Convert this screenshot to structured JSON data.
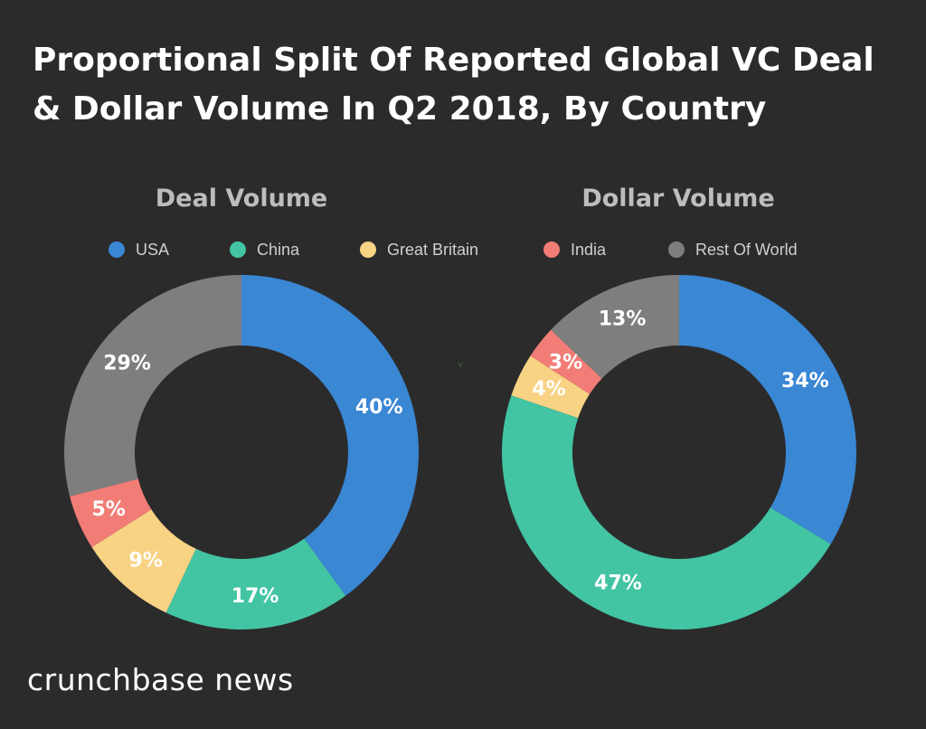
{
  "title_lines": [
    "Proportional Split Of Reported Global VC Deal",
    "& Dollar Volume In Q2 2018, By Country"
  ],
  "legend": [
    {
      "label": "USA",
      "color": "#3a87d4"
    },
    {
      "label": "China",
      "color": "#43c4a3"
    },
    {
      "label": "Great Britain",
      "color": "#f8d384"
    },
    {
      "label": "India",
      "color": "#f17d76"
    },
    {
      "label": "Rest Of World",
      "color": "#7e7e7e"
    }
  ],
  "chart_data": [
    {
      "type": "pie",
      "title": "Deal Volume",
      "categories": [
        "USA",
        "China",
        "Great Britain",
        "India",
        "Rest Of World"
      ],
      "values": [
        40,
        17,
        9,
        5,
        29
      ],
      "labels": [
        "40%",
        "17%",
        "9%",
        "5%",
        "29%"
      ],
      "unit": "%",
      "donut": true,
      "legend_position": "top"
    },
    {
      "type": "pie",
      "title": "Dollar Volume",
      "categories": [
        "USA",
        "China",
        "Great Britain",
        "India",
        "Rest Of World"
      ],
      "values": [
        34,
        47,
        4,
        3,
        13
      ],
      "labels": [
        "34%",
        "47%",
        "4%",
        "3%",
        "13%"
      ],
      "unit": "%",
      "donut": true,
      "legend_position": "top"
    }
  ],
  "stray_mark": "v",
  "brand": "crunchbase news"
}
